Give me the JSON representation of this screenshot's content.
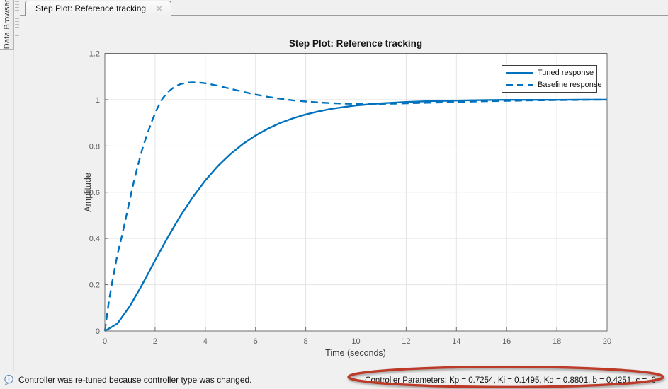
{
  "sidebar": {
    "label": "Data Browser"
  },
  "tabs": [
    {
      "label": "Step Plot: Reference tracking",
      "close_glyph": "✕",
      "active": true
    }
  ],
  "icons": {
    "tab_close": "close-x",
    "status_info": "info-balloon"
  },
  "status": {
    "message": "Controller was re-tuned because controller type was changed.",
    "controller_parameters": "Controller Parameters: Kp = 0.7254, Ki = 0.1495, Kd = 0.8801, b = 0.4251, c =  0"
  },
  "annotations": [
    {
      "shape": "hand-drawn-ellipse",
      "target": "controller-parameters-text",
      "color": "#BE3A28"
    }
  ],
  "colors": {
    "line_blue": "#0072BD",
    "annotation_red": "#BE3A28",
    "axes_box": "#6e6e6e",
    "grid": "#e4e4e4",
    "tick_label": "#5c5c5c",
    "figure_bg": "#f0f0f0",
    "plot_bg": "#ffffff"
  },
  "chart_data": {
    "type": "line",
    "title": "Step Plot: Reference tracking",
    "xlabel": "Time (seconds)",
    "ylabel": "Amplitude",
    "xlim": [
      0,
      20
    ],
    "ylim": [
      0,
      1.2
    ],
    "xticks": [
      0,
      2,
      4,
      6,
      8,
      10,
      12,
      14,
      16,
      18,
      20
    ],
    "yticks": [
      0,
      0.2,
      0.4,
      0.6,
      0.8,
      1,
      1.2
    ],
    "grid": true,
    "legend_position": "northeast",
    "series": [
      {
        "name": "Tuned response",
        "style": "solid",
        "color": "#0072BD",
        "x": [
          0,
          0.5,
          1,
          1.5,
          2,
          2.5,
          3,
          3.5,
          4,
          4.5,
          5,
          5.5,
          6,
          6.5,
          7,
          7.5,
          8,
          8.5,
          9,
          9.5,
          10,
          11,
          12,
          13,
          14,
          15,
          16,
          17,
          18,
          19,
          20
        ],
        "y": [
          0,
          0.032,
          0.108,
          0.203,
          0.305,
          0.404,
          0.496,
          0.578,
          0.651,
          0.713,
          0.765,
          0.809,
          0.845,
          0.875,
          0.9,
          0.92,
          0.936,
          0.949,
          0.96,
          0.968,
          0.975,
          0.984,
          0.99,
          0.994,
          0.996,
          0.998,
          0.999,
          0.999,
          0.999,
          1,
          1
        ]
      },
      {
        "name": "Baseline response",
        "style": "dashed",
        "color": "#0072BD",
        "x": [
          0,
          0.15,
          0.3,
          0.5,
          0.7,
          0.9,
          1.1,
          1.3,
          1.5,
          1.7,
          1.9,
          2.1,
          2.3,
          2.5,
          2.75,
          3,
          3.25,
          3.5,
          3.75,
          4,
          4.5,
          5,
          5.5,
          6,
          6.5,
          7,
          7.5,
          8,
          8.5,
          9,
          9.5,
          10,
          10.5,
          11,
          11.5,
          12,
          13,
          14,
          15,
          16,
          17,
          18,
          19,
          20
        ],
        "y": [
          0,
          0.12,
          0.215,
          0.33,
          0.42,
          0.52,
          0.62,
          0.71,
          0.79,
          0.855,
          0.915,
          0.965,
          1.005,
          1.032,
          1.054,
          1.067,
          1.073,
          1.075,
          1.074,
          1.071,
          1.06,
          1.047,
          1.034,
          1.022,
          1.012,
          1.004,
          0.997,
          0.992,
          0.988,
          0.985,
          0.983,
          0.982,
          0.982,
          0.982,
          0.983,
          0.984,
          0.987,
          0.99,
          0.993,
          0.995,
          0.997,
          0.998,
          0.999,
          1
        ]
      }
    ]
  }
}
